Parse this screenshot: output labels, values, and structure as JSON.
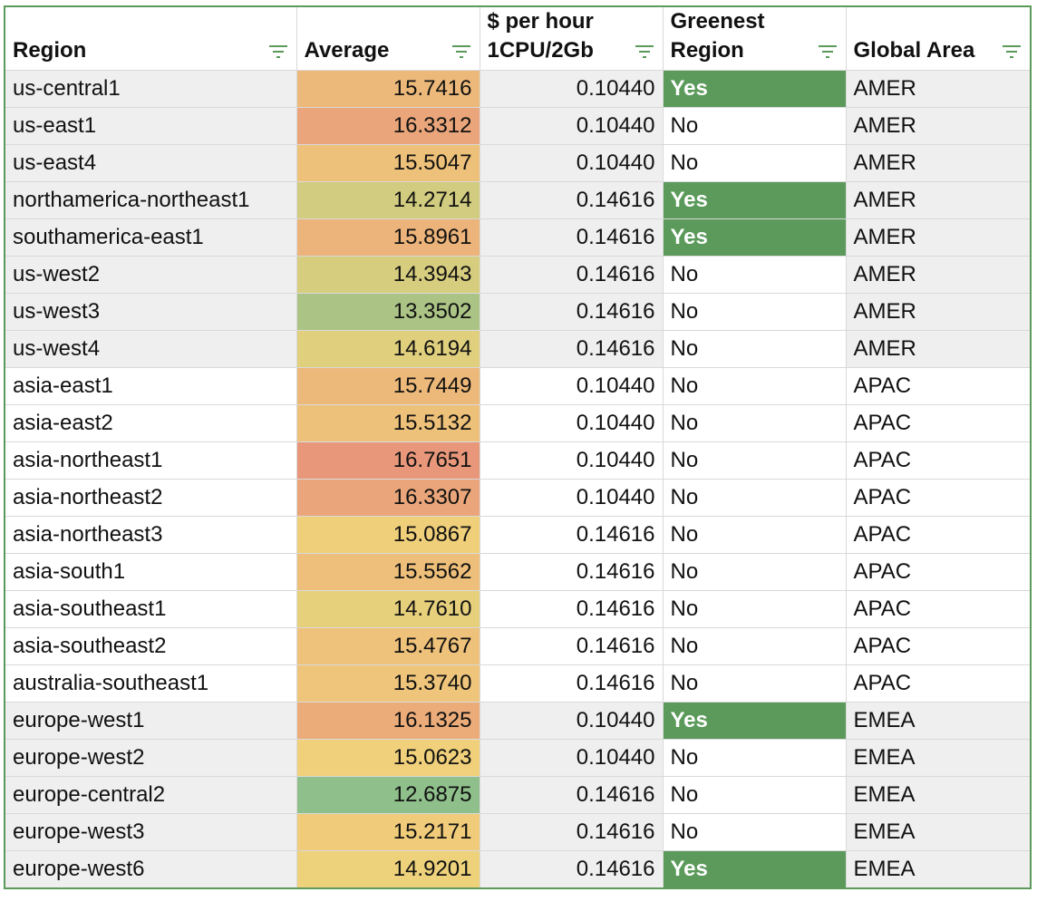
{
  "columns": [
    {
      "key": "region",
      "label_lines": [
        "Region"
      ]
    },
    {
      "key": "average",
      "label_lines": [
        "Average"
      ]
    },
    {
      "key": "price",
      "label_lines": [
        "$ per hour",
        "1CPU/2Gb"
      ]
    },
    {
      "key": "greenest",
      "label_lines": [
        "Greenest",
        "Region"
      ]
    },
    {
      "key": "area",
      "label_lines": [
        "Global Area"
      ]
    }
  ],
  "colors": {
    "yes_green": "#5b9a5b",
    "amer_shade": "#efefef",
    "emea_shade": "#efefef",
    "scale_low": "#8fbf8a",
    "scale_mid": "#f0d27a",
    "scale_high": "#e8977a"
  },
  "average_scale": {
    "min": 12.6875,
    "mid": 15.0,
    "max": 16.7651
  },
  "rows": [
    {
      "region": "us-central1",
      "average": "15.7416",
      "price": "0.10440",
      "greenest": "Yes",
      "area": "AMER"
    },
    {
      "region": "us-east1",
      "average": "16.3312",
      "price": "0.10440",
      "greenest": "No",
      "area": "AMER"
    },
    {
      "region": "us-east4",
      "average": "15.5047",
      "price": "0.10440",
      "greenest": "No",
      "area": "AMER"
    },
    {
      "region": "northamerica-northeast1",
      "average": "14.2714",
      "price": "0.14616",
      "greenest": "Yes",
      "area": "AMER"
    },
    {
      "region": "southamerica-east1",
      "average": "15.8961",
      "price": "0.14616",
      "greenest": "Yes",
      "area": "AMER"
    },
    {
      "region": "us-west2",
      "average": "14.3943",
      "price": "0.14616",
      "greenest": "No",
      "area": "AMER"
    },
    {
      "region": "us-west3",
      "average": "13.3502",
      "price": "0.14616",
      "greenest": "No",
      "area": "AMER"
    },
    {
      "region": "us-west4",
      "average": "14.6194",
      "price": "0.14616",
      "greenest": "No",
      "area": "AMER"
    },
    {
      "region": "asia-east1",
      "average": "15.7449",
      "price": "0.10440",
      "greenest": "No",
      "area": "APAC"
    },
    {
      "region": "asia-east2",
      "average": "15.5132",
      "price": "0.10440",
      "greenest": "No",
      "area": "APAC"
    },
    {
      "region": "asia-northeast1",
      "average": "16.7651",
      "price": "0.10440",
      "greenest": "No",
      "area": "APAC"
    },
    {
      "region": "asia-northeast2",
      "average": "16.3307",
      "price": "0.10440",
      "greenest": "No",
      "area": "APAC"
    },
    {
      "region": "asia-northeast3",
      "average": "15.0867",
      "price": "0.14616",
      "greenest": "No",
      "area": "APAC"
    },
    {
      "region": "asia-south1",
      "average": "15.5562",
      "price": "0.14616",
      "greenest": "No",
      "area": "APAC"
    },
    {
      "region": "asia-southeast1",
      "average": "14.7610",
      "price": "0.14616",
      "greenest": "No",
      "area": "APAC"
    },
    {
      "region": "asia-southeast2",
      "average": "15.4767",
      "price": "0.14616",
      "greenest": "No",
      "area": "APAC"
    },
    {
      "region": "australia-southeast1",
      "average": "15.3740",
      "price": "0.14616",
      "greenest": "No",
      "area": "APAC"
    },
    {
      "region": "europe-west1",
      "average": "16.1325",
      "price": "0.10440",
      "greenest": "Yes",
      "area": "EMEA"
    },
    {
      "region": "europe-west2",
      "average": "15.0623",
      "price": "0.10440",
      "greenest": "No",
      "area": "EMEA"
    },
    {
      "region": "europe-central2",
      "average": "12.6875",
      "price": "0.14616",
      "greenest": "No",
      "area": "EMEA"
    },
    {
      "region": "europe-west3",
      "average": "15.2171",
      "price": "0.14616",
      "greenest": "No",
      "area": "EMEA"
    },
    {
      "region": "europe-west6",
      "average": "14.9201",
      "price": "0.14616",
      "greenest": "Yes",
      "area": "EMEA"
    }
  ]
}
